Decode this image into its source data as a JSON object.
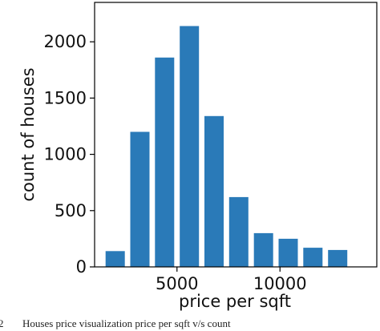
{
  "chart_data": {
    "type": "bar",
    "xlabel": "price per sqft",
    "ylabel": "count of houses",
    "xlim": [
      1000,
      14700
    ],
    "ylim": [
      0,
      2350
    ],
    "x_ticks": [
      5000,
      10000
    ],
    "x_tick_labels": [
      "5000",
      "10000"
    ],
    "y_ticks": [
      0,
      500,
      1000,
      1500,
      2000
    ],
    "y_tick_labels": [
      "0",
      "500",
      "1000",
      "1500",
      "2000"
    ],
    "bin_width": 1200,
    "bar_fill_fraction": 0.78,
    "color": "#2a7ab8",
    "grid": false,
    "bins": [
      {
        "x": 2000,
        "count": 140
      },
      {
        "x": 3200,
        "count": 1200
      },
      {
        "x": 4400,
        "count": 1860
      },
      {
        "x": 5600,
        "count": 2140
      },
      {
        "x": 6800,
        "count": 1340
      },
      {
        "x": 8000,
        "count": 620
      },
      {
        "x": 9200,
        "count": 300
      },
      {
        "x": 10400,
        "count": 250
      },
      {
        "x": 11600,
        "count": 170
      },
      {
        "x": 12800,
        "count": 150
      }
    ]
  },
  "caption": {
    "label": "2",
    "text": "Houses price visualization price per sqft v/s count"
  }
}
